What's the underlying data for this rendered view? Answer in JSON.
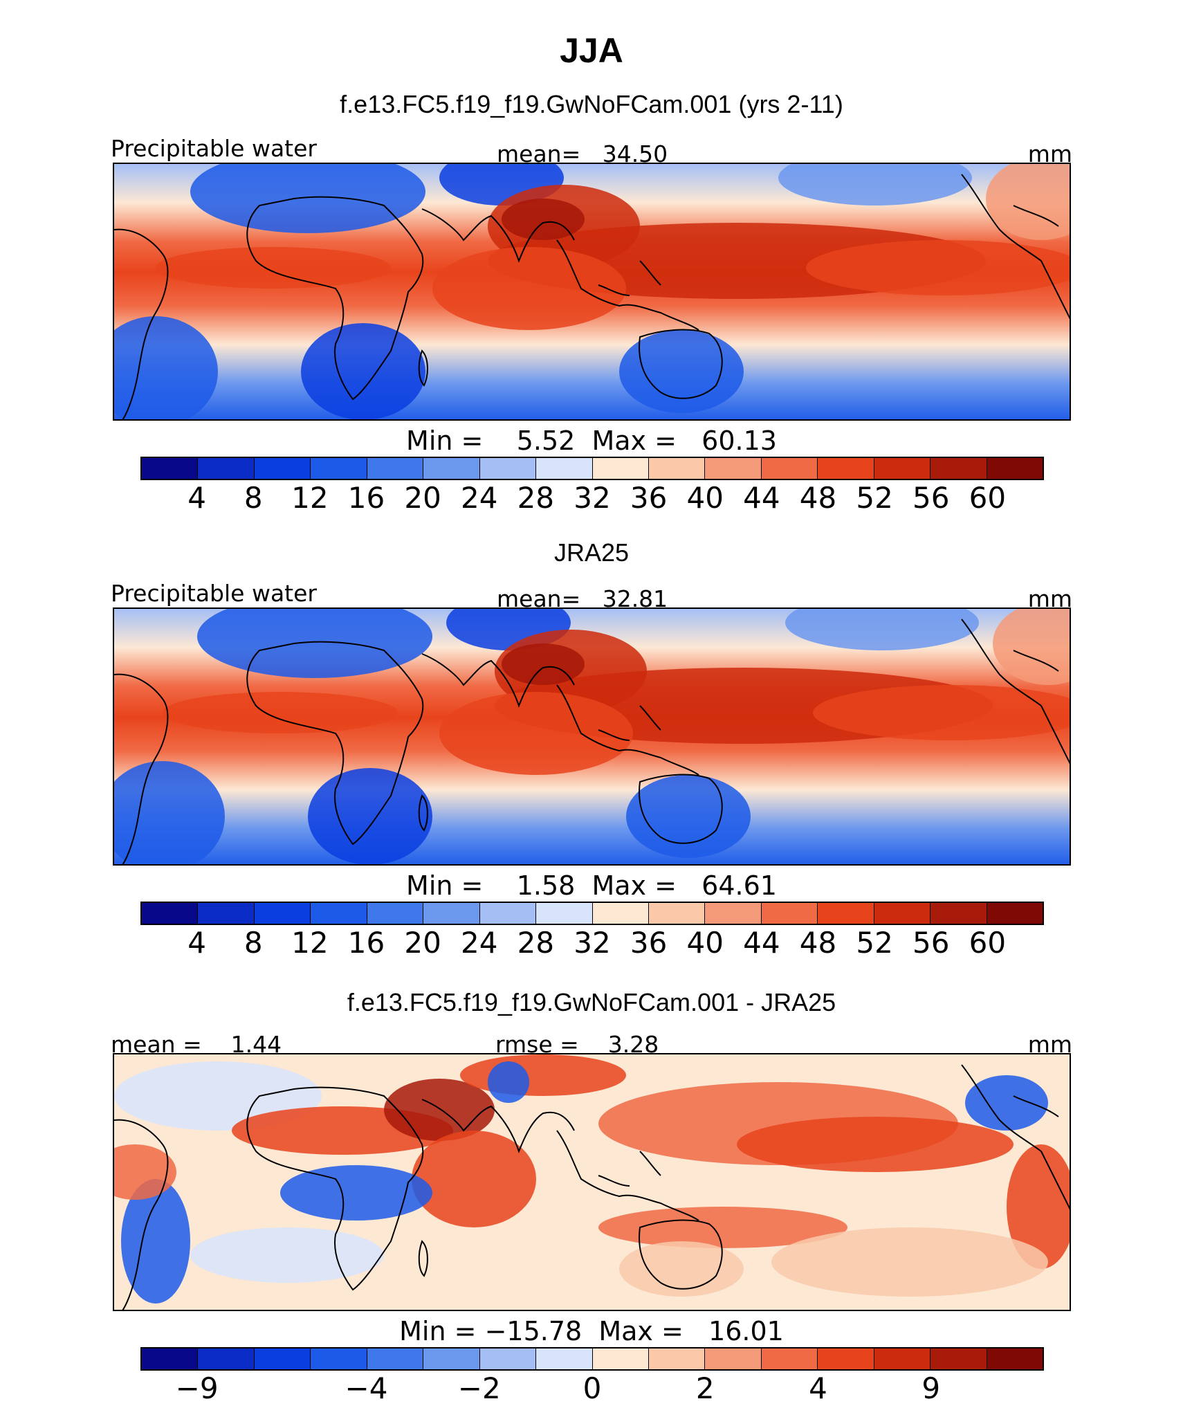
{
  "title": "JJA",
  "palettes": {
    "seq": [
      "#08088a",
      "#0a2cc4",
      "#0b3ee0",
      "#1d5ae8",
      "#3e78ea",
      "#6c98ee",
      "#a5bff5",
      "#d7e4fb",
      "#fde8d4",
      "#f9c9aa",
      "#f59a78",
      "#f06a45",
      "#e8441c",
      "#cc2a0c",
      "#a81a0a",
      "#7f0a05"
    ],
    "diff": [
      "#08088a",
      "#0a2cc4",
      "#0b3ee0",
      "#1d5ae8",
      "#3e78ea",
      "#6c98ee",
      "#a5bff5",
      "#d7e4fb",
      "#fde8d4",
      "#f9c9aa",
      "#f59a78",
      "#f06a45",
      "#e8441c",
      "#cc2a0c",
      "#a81a0a",
      "#7f0a05"
    ]
  },
  "panels": [
    {
      "id": "model",
      "title": "f.e13.FC5.f19_f19.GwNoFCam.001 (yrs 2-11)",
      "left_label": "Precipitable water",
      "center_label": "mean=   34.50",
      "right_label": "mm",
      "minmax": "Min =    5.52  Max =   60.13",
      "palette": "seq",
      "tick_labels": [
        "4",
        "8",
        "12",
        "16",
        "20",
        "24",
        "28",
        "32",
        "36",
        "40",
        "44",
        "48",
        "52",
        "56",
        "60"
      ]
    },
    {
      "id": "obs",
      "title": "JRA25",
      "left_label": "Precipitable water",
      "center_label": "mean=   32.81",
      "right_label": "mm",
      "minmax": "Min =    1.58  Max =   64.61",
      "palette": "seq",
      "tick_labels": [
        "4",
        "8",
        "12",
        "16",
        "20",
        "24",
        "28",
        "32",
        "36",
        "40",
        "44",
        "48",
        "52",
        "56",
        "60"
      ]
    },
    {
      "id": "diff",
      "title": "f.e13.FC5.f19_f19.GwNoFCam.001 - JRA25",
      "left_label": "mean =    1.44",
      "center_label": "rmse =    3.28",
      "right_label": "mm",
      "minmax": "Min = −15.78  Max =   16.01",
      "palette": "diff",
      "tick_labels": [
        "−9",
        "−4",
        "−2",
        "0",
        "2",
        "4",
        "9"
      ]
    }
  ]
}
